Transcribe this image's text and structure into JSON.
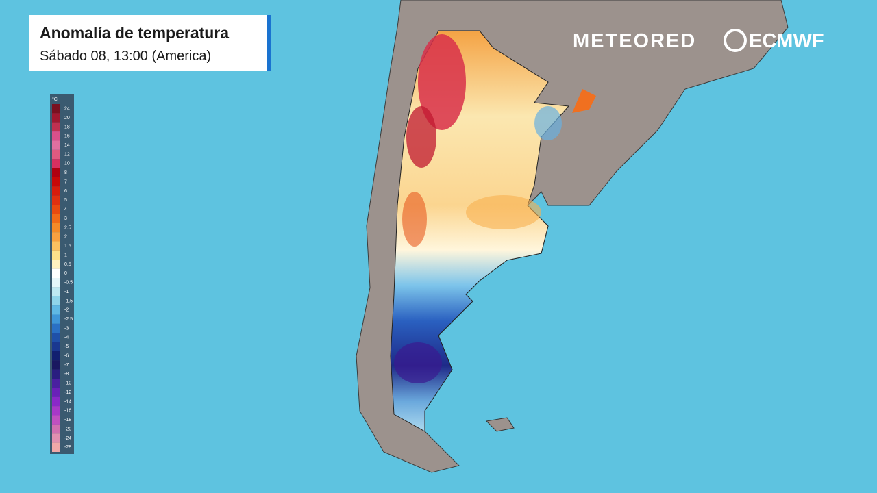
{
  "header": {
    "title": "Anomalía de temperatura",
    "subtitle": "Sábado 08, 13:00 (America)"
  },
  "logos": {
    "left": "METEORED",
    "right": "ECMWF"
  },
  "legend": {
    "unit": "°C",
    "items": [
      {
        "value": 24,
        "color": "#7a1020"
      },
      {
        "value": 20,
        "color": "#a01830"
      },
      {
        "value": 18,
        "color": "#c03050"
      },
      {
        "value": 16,
        "color": "#d8508a"
      },
      {
        "value": 14,
        "color": "#e070a0"
      },
      {
        "value": 12,
        "color": "#e05a80"
      },
      {
        "value": 10,
        "color": "#d83060"
      },
      {
        "value": 8,
        "color": "#b00010"
      },
      {
        "value": 7,
        "color": "#c80808"
      },
      {
        "value": 6,
        "color": "#d81c0c"
      },
      {
        "value": 5,
        "color": "#e03010"
      },
      {
        "value": 4,
        "color": "#e84a10"
      },
      {
        "value": 3,
        "color": "#f06a18"
      },
      {
        "value": 2.5,
        "color": "#f48a28"
      },
      {
        "value": 2,
        "color": "#f8a040"
      },
      {
        "value": 1.5,
        "color": "#fbc060"
      },
      {
        "value": 1,
        "color": "#fde08a"
      },
      {
        "value": 0.5,
        "color": "#fff2c0"
      },
      {
        "value": 0,
        "color": "#ffffff"
      },
      {
        "value": -0.5,
        "color": "#e6f6fa"
      },
      {
        "value": -1,
        "color": "#bfe8f2"
      },
      {
        "value": -1.5,
        "color": "#90d4ea"
      },
      {
        "value": -2,
        "color": "#60b8e4"
      },
      {
        "value": -2.5,
        "color": "#3f96d8"
      },
      {
        "value": -3,
        "color": "#2a70c4"
      },
      {
        "value": -4,
        "color": "#1f50a8"
      },
      {
        "value": -5,
        "color": "#1a3890"
      },
      {
        "value": -6,
        "color": "#122070"
      },
      {
        "value": -7,
        "color": "#1a1860"
      },
      {
        "value": -8,
        "color": "#2a1e80"
      },
      {
        "value": -10,
        "color": "#4a20a0"
      },
      {
        "value": -12,
        "color": "#6a20b8"
      },
      {
        "value": -14,
        "color": "#8a28c8"
      },
      {
        "value": -16,
        "color": "#a838c8"
      },
      {
        "value": -18,
        "color": "#c050c0"
      },
      {
        "value": -20,
        "color": "#d070b0"
      },
      {
        "value": -24,
        "color": "#e090b0"
      },
      {
        "value": -28,
        "color": "#f0a8a8"
      }
    ]
  }
}
